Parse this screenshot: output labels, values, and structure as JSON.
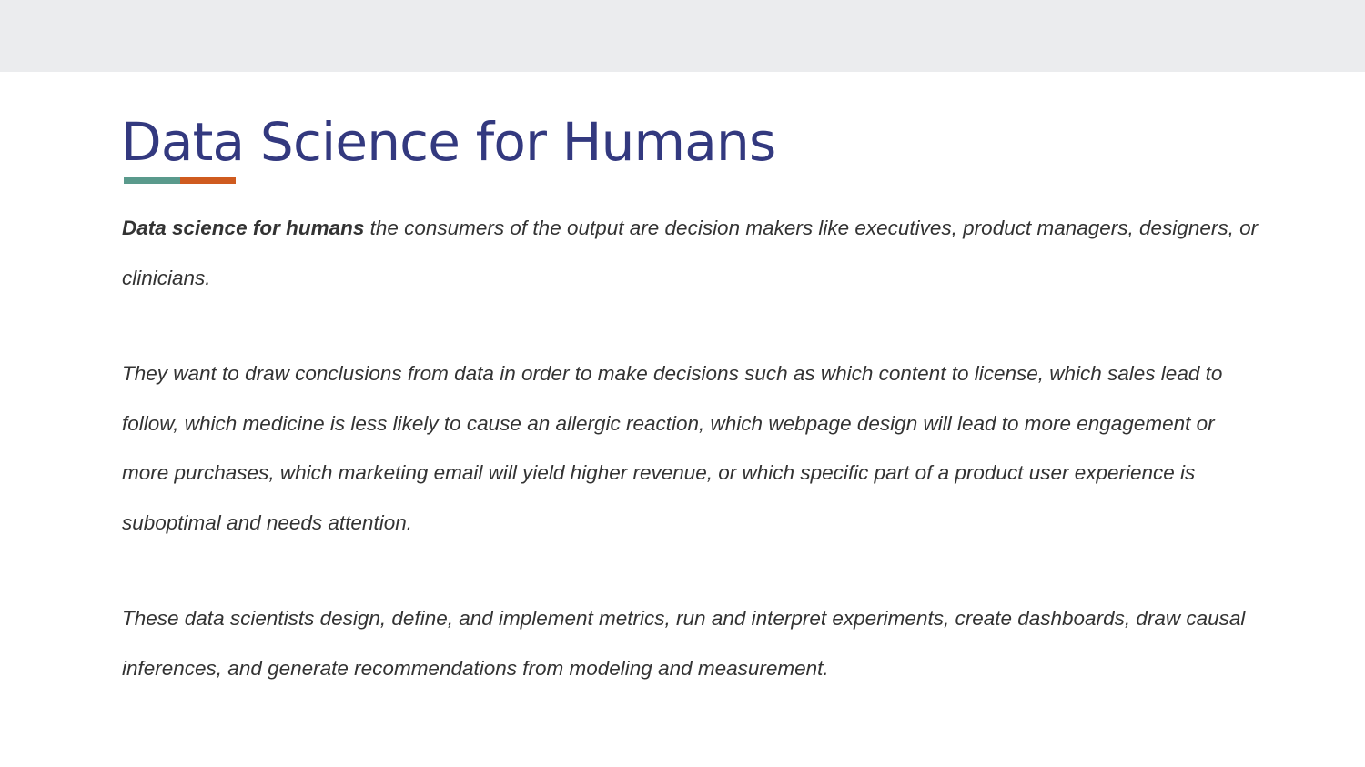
{
  "slide": {
    "title": "Data Science for Humans",
    "colors": {
      "title": "#33397f",
      "accent_left": "#5a9a8c",
      "accent_right": "#cf5b1f",
      "header_band": "#ebecee",
      "body_text": "#333333"
    }
  },
  "body": {
    "paragraph_1": {
      "lead": "Data science for humans",
      "rest": " the consumers of the output are decision makers like executives, product managers, designers, or clinicians."
    },
    "paragraph_2": "They want to draw conclusions from data in order to make decisions such as which content to license, which sales lead to follow, which medicine is less likely to cause an allergic reaction, which webpage design will lead to more engagement or more purchases, which marketing email will yield higher revenue, or which specific part of a product user experience is suboptimal and needs attention.",
    "paragraph_3": "These data scientists design, define, and implement metrics, run and interpret experiments, create dashboards, draw causal inferences, and generate recommendations from modeling and measurement."
  }
}
